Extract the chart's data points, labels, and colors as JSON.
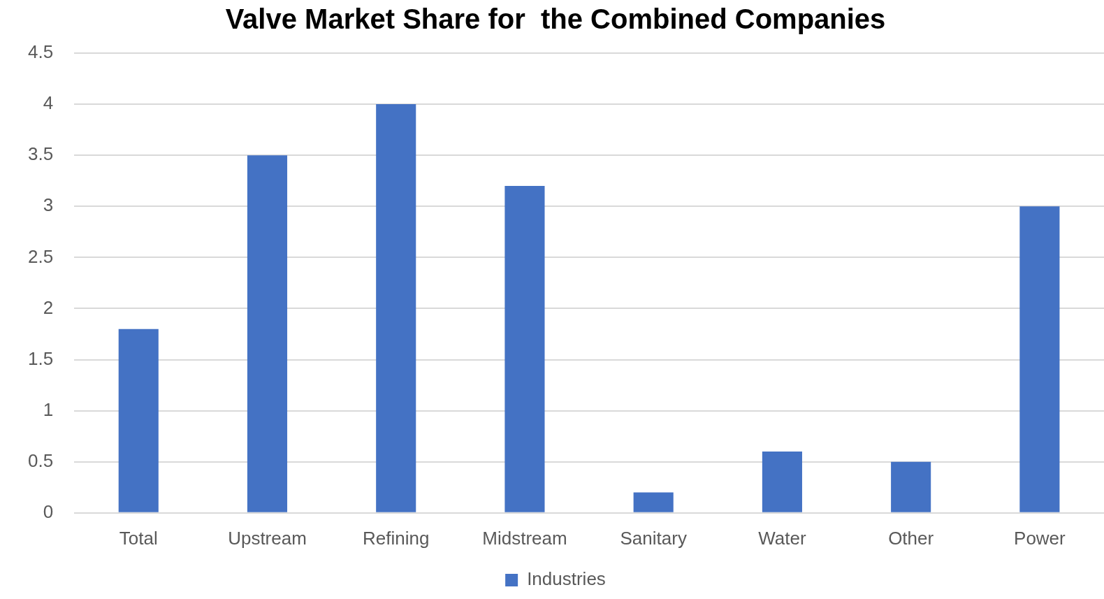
{
  "chart_data": {
    "type": "bar",
    "title": "Valve Market Share for  the Combined Companies",
    "categories": [
      "Total",
      "Upstream",
      "Refining",
      "Midstream",
      "Sanitary",
      "Water",
      "Other",
      "Power"
    ],
    "series": [
      {
        "name": "Industries",
        "color": "#4472c4",
        "values": [
          1.8,
          3.5,
          4,
          3.2,
          0.2,
          0.6,
          0.5,
          3
        ]
      }
    ],
    "ylim": [
      0,
      4.5
    ],
    "yticks": [
      0,
      0.5,
      1,
      1.5,
      2,
      2.5,
      3,
      3.5,
      4,
      4.5
    ],
    "grid": "y",
    "legend": "bottom"
  }
}
